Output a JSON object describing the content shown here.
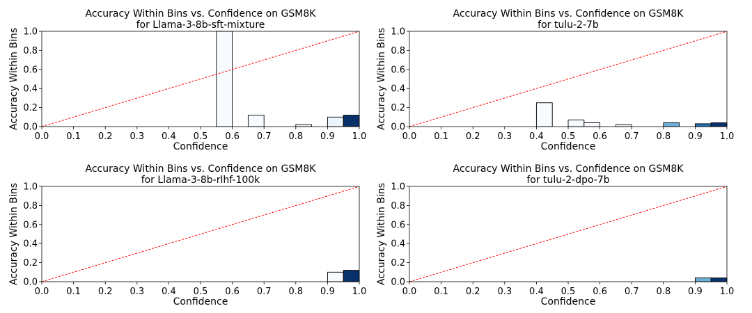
{
  "chart_data": [
    {
      "type": "bar",
      "title": "Accuracy Within Bins vs. Confidence on GSM8K",
      "subtitle": "for Llama-3-8b-sft-mixture",
      "xlabel": "Confidence",
      "ylabel": "Accuracy Within Bins",
      "xlim": [
        0,
        1
      ],
      "ylim": [
        0,
        1
      ],
      "xticks": [
        "0.0",
        "0.1",
        "0.2",
        "0.3",
        "0.4",
        "0.5",
        "0.6",
        "0.7",
        "0.8",
        "0.9",
        "1.0"
      ],
      "yticks": [
        "0.0",
        "0.2",
        "0.4",
        "0.6",
        "0.8",
        "1.0"
      ],
      "bin_width": 0.05,
      "bars": [
        {
          "x_start": 0.55,
          "value": 1.0,
          "color": "#f7fbff"
        },
        {
          "x_start": 0.65,
          "value": 0.12,
          "color": "#f7fbff"
        },
        {
          "x_start": 0.8,
          "value": 0.02,
          "color": "#f7fbff"
        },
        {
          "x_start": 0.9,
          "value": 0.1,
          "color": "#ebf3fb"
        },
        {
          "x_start": 0.95,
          "value": 0.12,
          "color": "#08306b"
        }
      ],
      "reference_line": {
        "from": [
          0,
          0
        ],
        "to": [
          1,
          1
        ],
        "style": "dashed",
        "color": "#ff0000"
      }
    },
    {
      "type": "bar",
      "title": "Accuracy Within Bins vs. Confidence on GSM8K",
      "subtitle": "for tulu-2-7b",
      "xlabel": "Confidence",
      "ylabel": "Accuracy Within Bins",
      "xlim": [
        0,
        1
      ],
      "ylim": [
        0,
        1
      ],
      "xticks": [
        "0.0",
        "0.1",
        "0.2",
        "0.3",
        "0.4",
        "0.5",
        "0.6",
        "0.7",
        "0.8",
        "0.9",
        "1.0"
      ],
      "yticks": [
        "0.0",
        "0.2",
        "0.4",
        "0.6",
        "0.8",
        "1.0"
      ],
      "bin_width": 0.05,
      "bars": [
        {
          "x_start": 0.4,
          "value": 0.25,
          "color": "#f7fbff"
        },
        {
          "x_start": 0.5,
          "value": 0.07,
          "color": "#f7fbff"
        },
        {
          "x_start": 0.55,
          "value": 0.04,
          "color": "#f7fbff"
        },
        {
          "x_start": 0.65,
          "value": 0.02,
          "color": "#f7fbff"
        },
        {
          "x_start": 0.8,
          "value": 0.04,
          "color": "#6baed6"
        },
        {
          "x_start": 0.9,
          "value": 0.03,
          "color": "#2171b5"
        },
        {
          "x_start": 0.95,
          "value": 0.04,
          "color": "#08306b"
        }
      ],
      "reference_line": {
        "from": [
          0,
          0
        ],
        "to": [
          1,
          1
        ],
        "style": "dashed",
        "color": "#ff0000"
      }
    },
    {
      "type": "bar",
      "title": "Accuracy Within Bins vs. Confidence on GSM8K",
      "subtitle": "for Llama-3-8b-rlhf-100k",
      "xlabel": "Confidence",
      "ylabel": "Accuracy Within Bins",
      "xlim": [
        0,
        1
      ],
      "ylim": [
        0,
        1
      ],
      "xticks": [
        "0.0",
        "0.1",
        "0.2",
        "0.3",
        "0.4",
        "0.5",
        "0.6",
        "0.7",
        "0.8",
        "0.9",
        "1.0"
      ],
      "yticks": [
        "0.0",
        "0.2",
        "0.4",
        "0.6",
        "0.8",
        "1.0"
      ],
      "bin_width": 0.05,
      "bars": [
        {
          "x_start": 0.9,
          "value": 0.1,
          "color": "#f7fbff"
        },
        {
          "x_start": 0.95,
          "value": 0.12,
          "color": "#08306b"
        }
      ],
      "reference_line": {
        "from": [
          0,
          0
        ],
        "to": [
          1,
          1
        ],
        "style": "dashed",
        "color": "#ff0000"
      }
    },
    {
      "type": "bar",
      "title": "Accuracy Within Bins vs. Confidence on GSM8K",
      "subtitle": "for tulu-2-dpo-7b",
      "xlabel": "Confidence",
      "ylabel": "Accuracy Within Bins",
      "xlim": [
        0,
        1
      ],
      "ylim": [
        0,
        1
      ],
      "xticks": [
        "0.0",
        "0.1",
        "0.2",
        "0.3",
        "0.4",
        "0.5",
        "0.6",
        "0.7",
        "0.8",
        "0.9",
        "1.0"
      ],
      "yticks": [
        "0.0",
        "0.2",
        "0.4",
        "0.6",
        "0.8",
        "1.0"
      ],
      "bin_width": 0.05,
      "bars": [
        {
          "x_start": 0.9,
          "value": 0.04,
          "color": "#6baed6"
        },
        {
          "x_start": 0.95,
          "value": 0.04,
          "color": "#08306b"
        }
      ],
      "reference_line": {
        "from": [
          0,
          0
        ],
        "to": [
          1,
          1
        ],
        "style": "dashed",
        "color": "#ff0000"
      }
    }
  ]
}
